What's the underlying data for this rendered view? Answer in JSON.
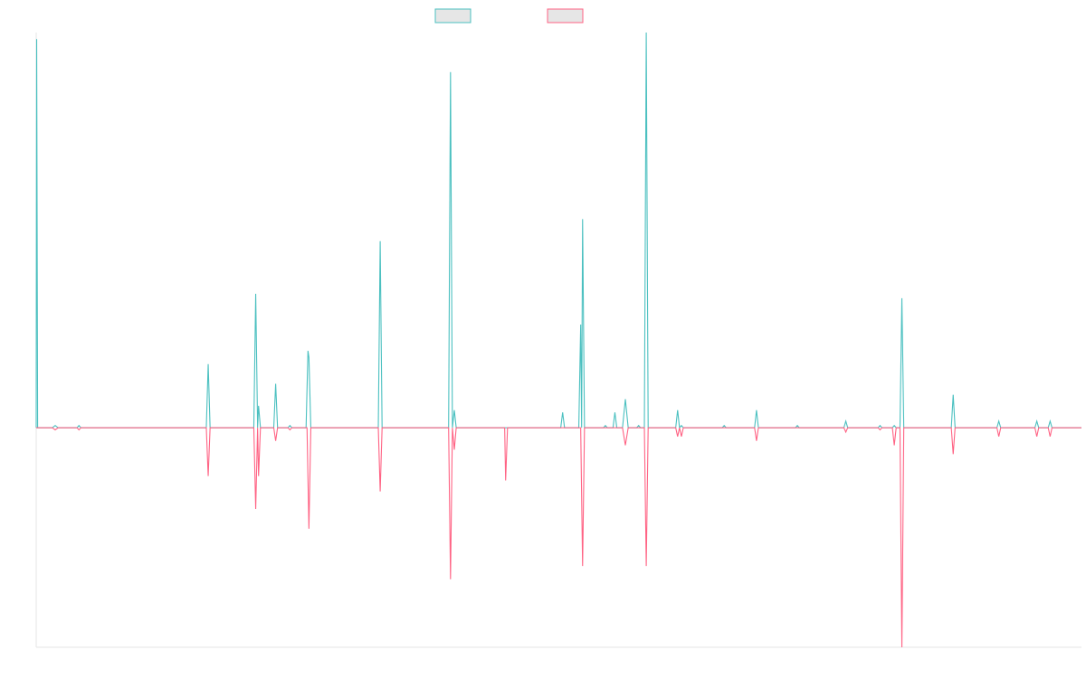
{
  "chart_data": {
    "type": "line",
    "title": "",
    "xlabel": "",
    "ylabel": "",
    "legend_position": "top-center",
    "grid": false,
    "x_domain": [
      0,
      1100
    ],
    "ylim": [
      -100,
      180
    ],
    "baseline": 0,
    "series": [
      {
        "color": "#4bc0c0",
        "points": [
          [
            0,
            0
          ],
          [
            0.5,
            177
          ],
          [
            1.5,
            0
          ],
          [
            17,
            0
          ],
          [
            20,
            1
          ],
          [
            23,
            0
          ],
          [
            43,
            0
          ],
          [
            45,
            1
          ],
          [
            47,
            0
          ],
          [
            179,
            0
          ],
          [
            181,
            29
          ],
          [
            183,
            0
          ],
          [
            229,
            0
          ],
          [
            231,
            61
          ],
          [
            233,
            0
          ],
          [
            234,
            10
          ],
          [
            236,
            0
          ],
          [
            250,
            0
          ],
          [
            252,
            20
          ],
          [
            254,
            0
          ],
          [
            265,
            0
          ],
          [
            267,
            1
          ],
          [
            269,
            0
          ],
          [
            284,
            0
          ],
          [
            286,
            35
          ],
          [
            287,
            32
          ],
          [
            289,
            0
          ],
          [
            360,
            0
          ],
          [
            362,
            85
          ],
          [
            364,
            0
          ],
          [
            434,
            0
          ],
          [
            436,
            162
          ],
          [
            438,
            0
          ],
          [
            440,
            8
          ],
          [
            442,
            0
          ],
          [
            552,
            0
          ],
          [
            554,
            7
          ],
          [
            556,
            0
          ],
          [
            571,
            0
          ],
          [
            573,
            47
          ],
          [
            574,
            0
          ],
          [
            575,
            95
          ],
          [
            577,
            0
          ],
          [
            597,
            0
          ],
          [
            599,
            1
          ],
          [
            601,
            0
          ],
          [
            607,
            0
          ],
          [
            609,
            7
          ],
          [
            611,
            0
          ],
          [
            617,
            0
          ],
          [
            620,
            13
          ],
          [
            623,
            0
          ],
          [
            632,
            0
          ],
          [
            634,
            1
          ],
          [
            636,
            0
          ],
          [
            640,
            0
          ],
          [
            642,
            180
          ],
          [
            644,
            0
          ],
          [
            673,
            0
          ],
          [
            675,
            8
          ],
          [
            677,
            0
          ],
          [
            679,
            1
          ],
          [
            681,
            0
          ],
          [
            722,
            0
          ],
          [
            724,
            1
          ],
          [
            726,
            0
          ],
          [
            756,
            0
          ],
          [
            758,
            8
          ],
          [
            760,
            0
          ],
          [
            799,
            0
          ],
          [
            801,
            1
          ],
          [
            803,
            0
          ],
          [
            850,
            0
          ],
          [
            852,
            3
          ],
          [
            854,
            0
          ],
          [
            886,
            0
          ],
          [
            888,
            1
          ],
          [
            890,
            0
          ],
          [
            901,
            0
          ],
          [
            903,
            1
          ],
          [
            905,
            0
          ],
          [
            909,
            0
          ],
          [
            911,
            59
          ],
          [
            913,
            0
          ],
          [
            963,
            0
          ],
          [
            965,
            15
          ],
          [
            967,
            0
          ],
          [
            1011,
            0
          ],
          [
            1013,
            3
          ],
          [
            1015,
            0
          ],
          [
            1051,
            0
          ],
          [
            1053,
            3
          ],
          [
            1055,
            0
          ],
          [
            1065,
            0
          ],
          [
            1067,
            3
          ],
          [
            1069,
            0
          ],
          [
            1100,
            0
          ]
        ]
      },
      {
        "color": "#ff6384",
        "points": [
          [
            0,
            0
          ],
          [
            17,
            0
          ],
          [
            20,
            -1
          ],
          [
            23,
            0
          ],
          [
            43,
            0
          ],
          [
            45,
            -1
          ],
          [
            47,
            0
          ],
          [
            179,
            0
          ],
          [
            181,
            -22
          ],
          [
            183,
            0
          ],
          [
            229,
            0
          ],
          [
            231,
            -37
          ],
          [
            233,
            0
          ],
          [
            234,
            -22
          ],
          [
            236,
            0
          ],
          [
            250,
            0
          ],
          [
            252,
            -6
          ],
          [
            254,
            0
          ],
          [
            265,
            0
          ],
          [
            267,
            -1
          ],
          [
            269,
            0
          ],
          [
            285,
            0
          ],
          [
            287,
            -46
          ],
          [
            289,
            0
          ],
          [
            360,
            0
          ],
          [
            362,
            -29
          ],
          [
            364,
            0
          ],
          [
            434,
            0
          ],
          [
            436,
            -69
          ],
          [
            438,
            0
          ],
          [
            440,
            -10
          ],
          [
            442,
            0
          ],
          [
            493,
            0
          ],
          [
            494,
            -24
          ],
          [
            496,
            0
          ],
          [
            573,
            0
          ],
          [
            575,
            -63
          ],
          [
            577,
            0
          ],
          [
            617,
            0
          ],
          [
            620,
            -8
          ],
          [
            623,
            0
          ],
          [
            640,
            0
          ],
          [
            642,
            -63
          ],
          [
            644,
            0
          ],
          [
            673,
            0
          ],
          [
            675,
            -4
          ],
          [
            677,
            0
          ],
          [
            679,
            -4
          ],
          [
            681,
            0
          ],
          [
            756,
            0
          ],
          [
            758,
            -6
          ],
          [
            760,
            0
          ],
          [
            850,
            0
          ],
          [
            852,
            -2
          ],
          [
            854,
            0
          ],
          [
            886,
            0
          ],
          [
            888,
            -1
          ],
          [
            890,
            0
          ],
          [
            901,
            0
          ],
          [
            903,
            -8
          ],
          [
            905,
            0
          ],
          [
            909,
            0
          ],
          [
            911,
            -100
          ],
          [
            913,
            0
          ],
          [
            963,
            0
          ],
          [
            965,
            -12
          ],
          [
            967,
            0
          ],
          [
            1011,
            0
          ],
          [
            1013,
            -4
          ],
          [
            1015,
            0
          ],
          [
            1051,
            0
          ],
          [
            1053,
            -4
          ],
          [
            1055,
            0
          ],
          [
            1065,
            0
          ],
          [
            1067,
            -4
          ],
          [
            1069,
            0
          ],
          [
            1100,
            0
          ]
        ]
      }
    ],
    "legend": [
      {
        "color": "#4bc0c0",
        "fill": "#e6e6e6"
      },
      {
        "color": "#ff6384",
        "fill": "#e6e6e6"
      }
    ]
  }
}
